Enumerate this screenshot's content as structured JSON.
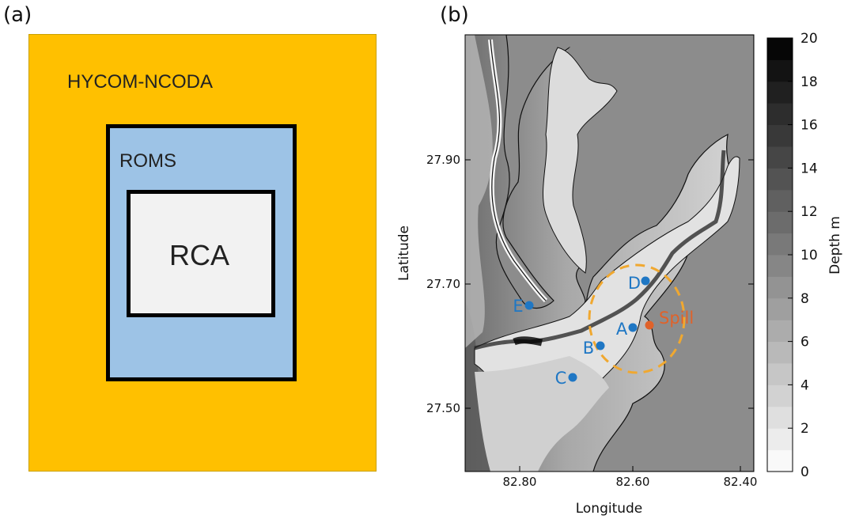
{
  "panel_a": {
    "label": "(a)",
    "outer_domain": "HYCOM-NCODA",
    "middle_domain": "ROMS",
    "inner_domain": "RCA",
    "colors": {
      "outer": "#FFC000",
      "middle": "#9DC3E6",
      "inner": "#F2F2F2"
    }
  },
  "panel_b": {
    "label": "(b)",
    "x_ticks": [
      "82.80",
      "82.60",
      "82.40"
    ],
    "y_ticks": [
      "27.90",
      "27.70",
      "27.50"
    ],
    "xlabel": "Longitude",
    "ylabel": "Latitude",
    "colorbar": {
      "label": "Depth m",
      "ticks": [
        "20",
        "18",
        "16",
        "14",
        "12",
        "10",
        "8",
        "6",
        "4",
        "2",
        "0"
      ],
      "range": [
        0,
        20
      ],
      "colormap": "grayscale (0 white, 20 black)"
    },
    "stations": [
      {
        "id": "A",
        "name": "A",
        "color": "#1f77c4"
      },
      {
        "id": "B",
        "name": "B",
        "color": "#1f77c4"
      },
      {
        "id": "C",
        "name": "C",
        "color": "#1f77c4"
      },
      {
        "id": "D",
        "name": "D",
        "color": "#1f77c4"
      },
      {
        "id": "E",
        "name": "E",
        "color": "#1f77c4"
      }
    ],
    "spill": {
      "label": "Spill",
      "color": "#E0622A"
    },
    "spill_circle_color": "#F0A830",
    "land_color": "#8c8c8c"
  }
}
